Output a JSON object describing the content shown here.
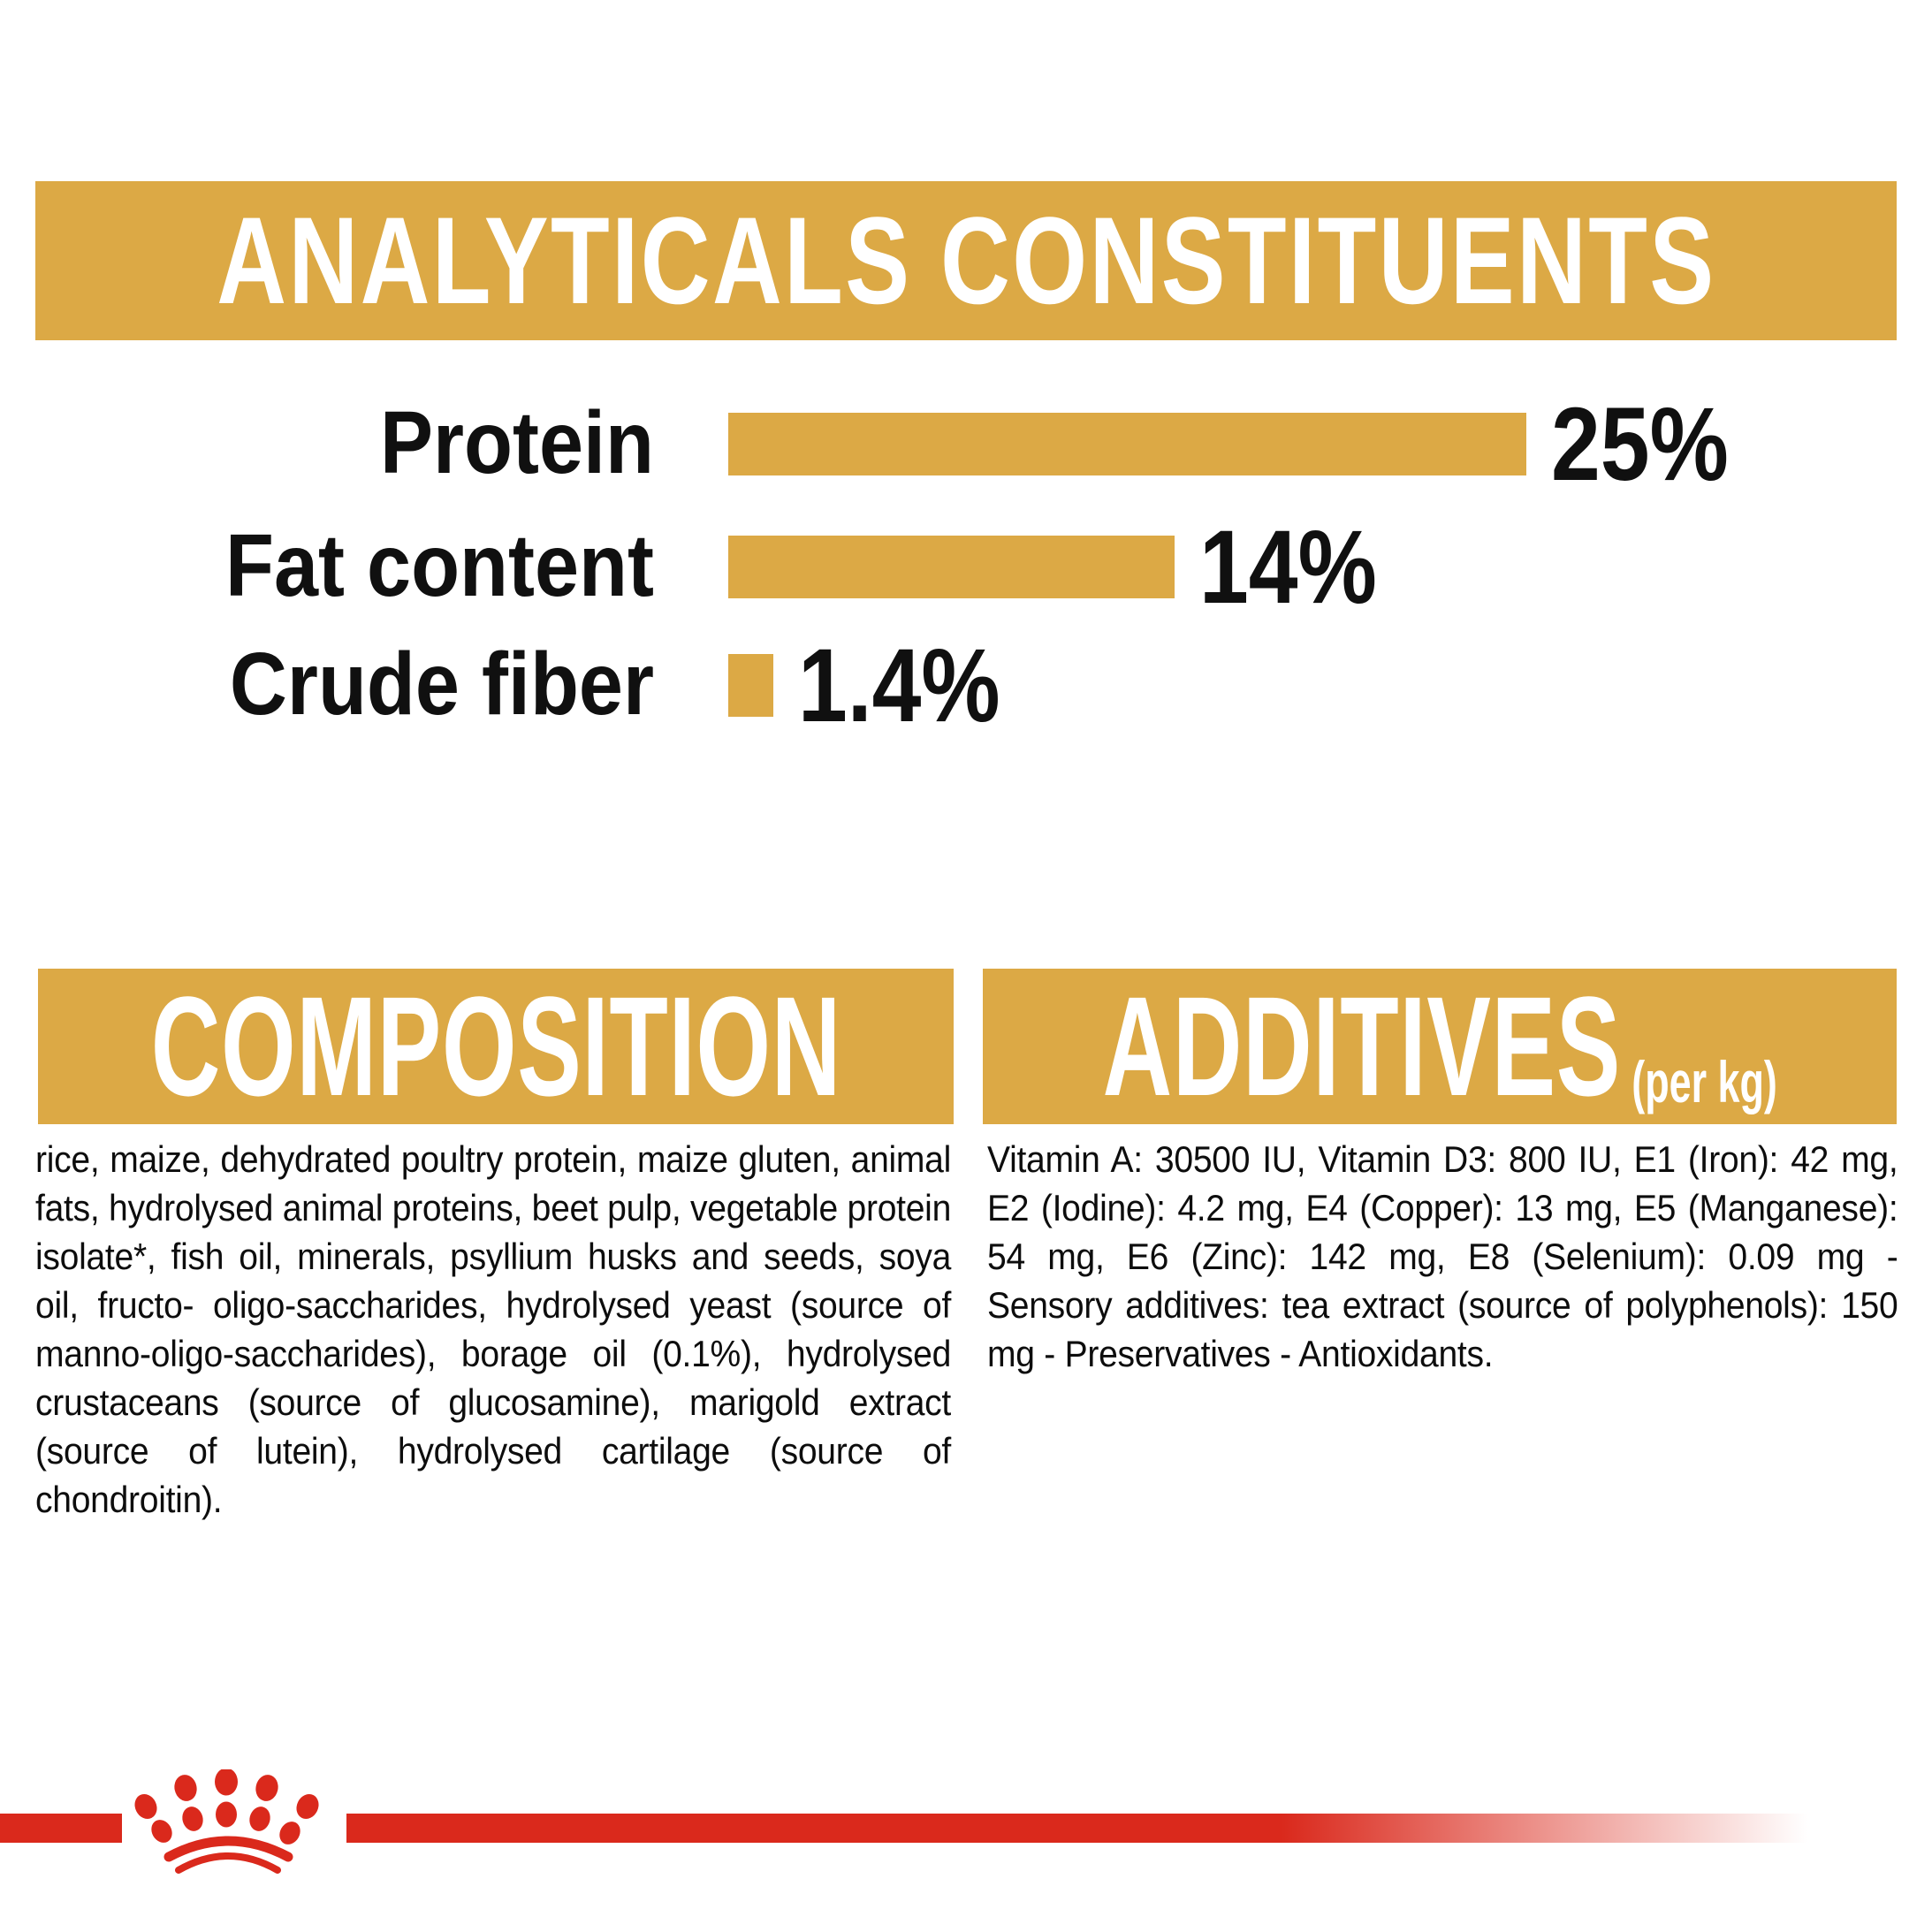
{
  "colors": {
    "gold": "#DCA945",
    "red": "#DA291C",
    "text": "#101010",
    "banner_text": "#FFFFFF",
    "background": "#FFFFFF"
  },
  "analyticals": {
    "title": "ANALYTICALS CONSTITUENTS"
  },
  "chart_data": {
    "type": "bar",
    "orientation": "horizontal",
    "title": "ANALYTICALS CONSTITUENTS",
    "categories": [
      "Protein",
      "Fat content",
      "Crude fiber"
    ],
    "values": [
      25,
      14,
      1.4
    ],
    "value_labels": [
      "25%",
      "14%",
      "1.4%"
    ],
    "unit": "%",
    "xlim": [
      0,
      25
    ],
    "bar_color": "#DCA945",
    "grid": false,
    "legend": false
  },
  "composition": {
    "title": "COMPOSITION",
    "body": "rice, maize, dehydrated poultry protein, maize gluten, animal fats, hydrolysed animal proteins, beet pulp, vegetable protein isolate*, fish oil, minerals, psyllium husks and seeds, soya oil, fructo- oligo-saccharides, hydrolysed yeast (source of manno-oligo-saccharides), borage oil (0.1%), hydrolysed crustaceans (source of glucosamine), marigold extract (source of lutein), hydrolysed cartilage (source of chondroitin)."
  },
  "additives": {
    "title": "ADDITIVES",
    "unit_suffix": "(per kg)",
    "body": "Vitamin A: 30500 IU, Vitamin D3: 800 IU, E1 (Iron): 42 mg, E2 (Iodine): 4.2 mg, E4 (Copper): 13 mg, E5 (Manganese): 54 mg, E6 (Zinc): 142 mg, E8 (Selenium): 0.09 mg - Sensory additives: tea extract (source of polyphenols): 150 mg - Preservatives - Antioxidants.",
    "body_last_line": "Antioxidants."
  },
  "footer": {
    "logo": "royal-canin-crown-paw-logo"
  }
}
